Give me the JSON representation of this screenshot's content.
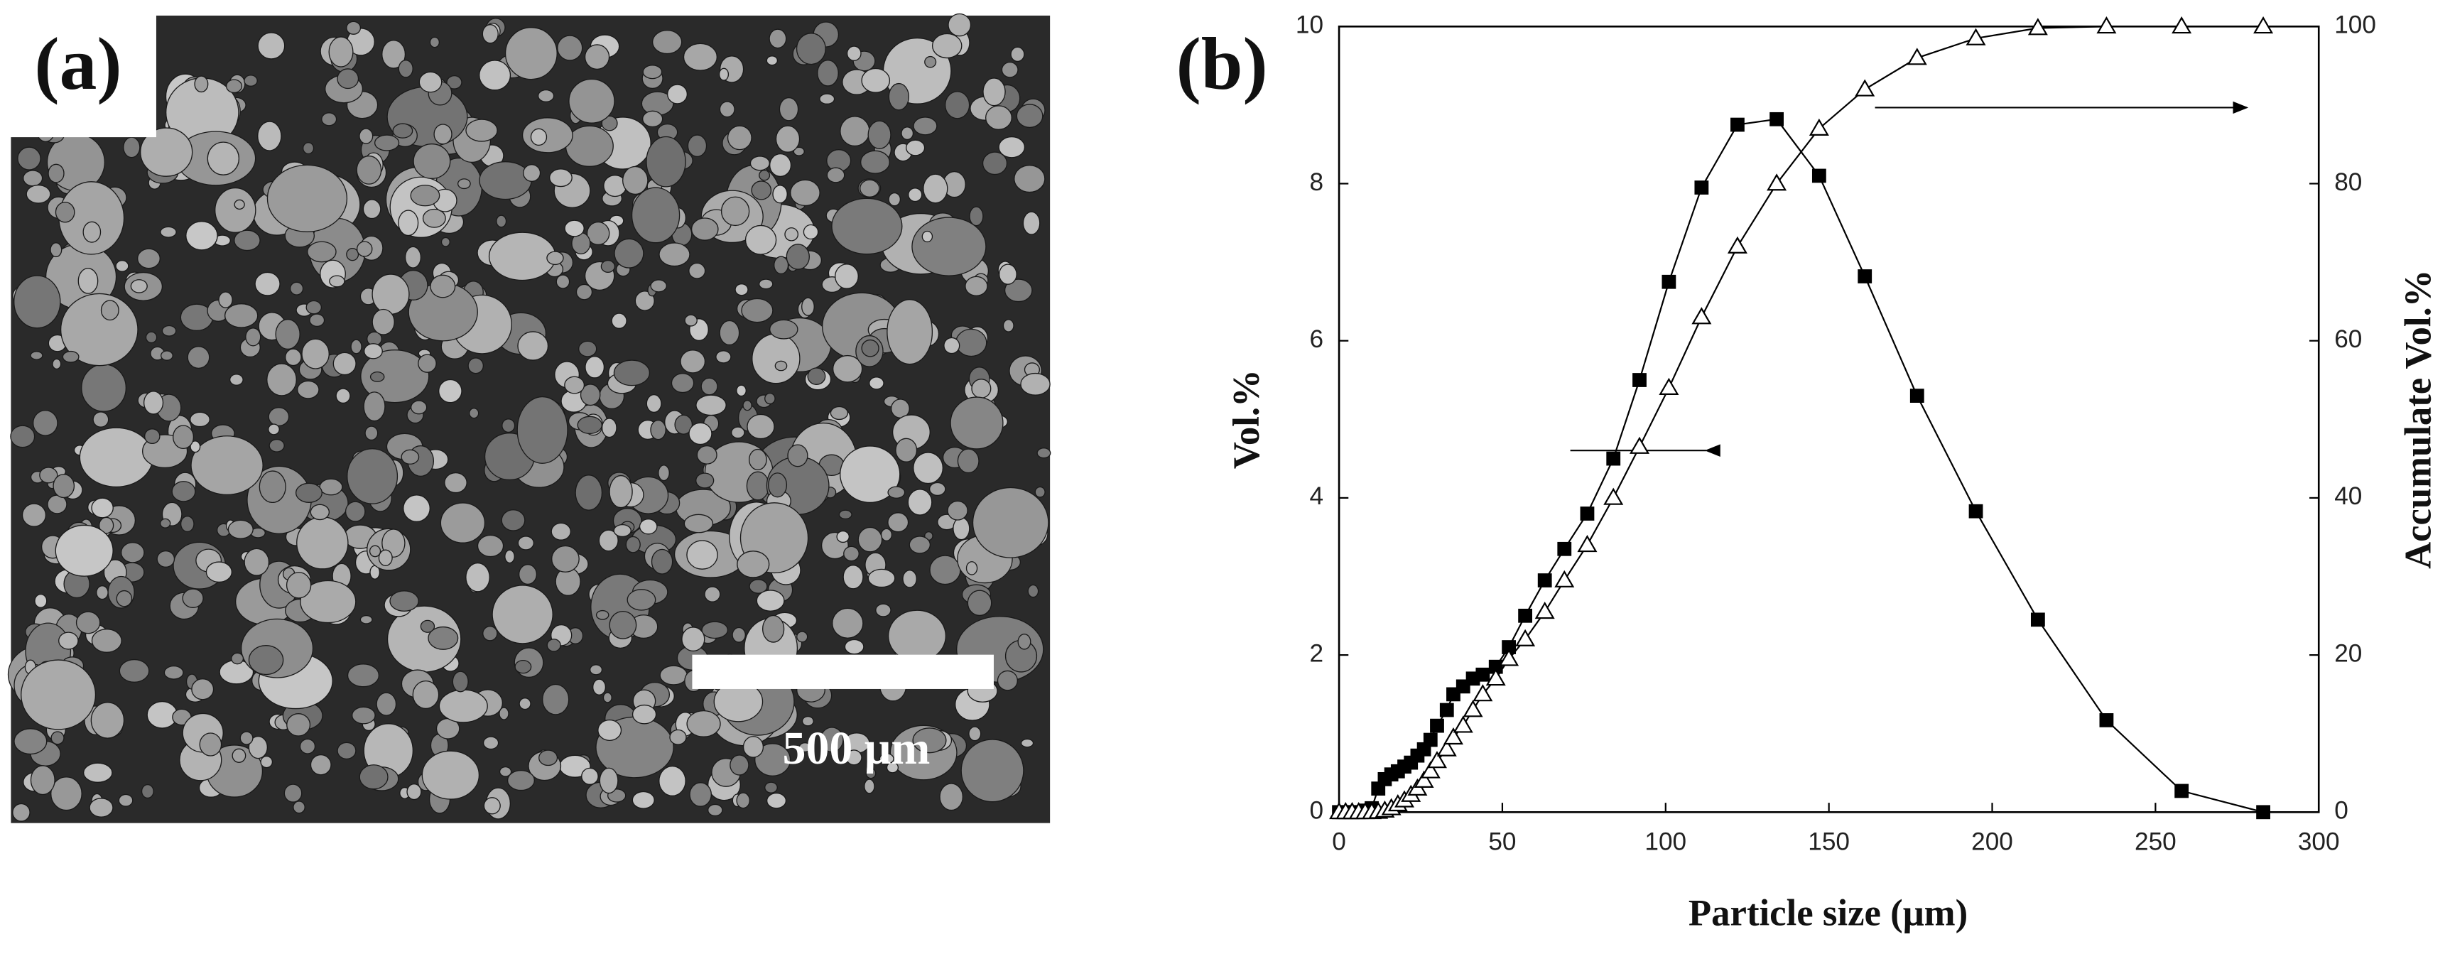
{
  "panel_a": {
    "label": "(a)",
    "scale_bar_text": "500 μm"
  },
  "chart_data": {
    "type": "line",
    "panel_label": "(b)",
    "x_label": "Particle size (μm)",
    "y_label": "Vol.%",
    "y2_label": "Accumulate Vol.%",
    "x": [
      0,
      2,
      4,
      6,
      8,
      10,
      12,
      14,
      16,
      18,
      20,
      22,
      24,
      26,
      28,
      30,
      33,
      35,
      38,
      41,
      44,
      48,
      52,
      57,
      63,
      69,
      76,
      84,
      92,
      101,
      111,
      122,
      134,
      147,
      161,
      177,
      195,
      214,
      235,
      258,
      283
    ],
    "series": [
      {
        "color": "#000000",
        "marker": "square",
        "axis": "y",
        "values": [
          0,
          0,
          0,
          0,
          0.02,
          0.05,
          0.3,
          0.42,
          0.48,
          0.52,
          0.58,
          0.63,
          0.72,
          0.8,
          0.92,
          1.1,
          1.3,
          1.5,
          1.6,
          1.7,
          1.75,
          1.85,
          2.1,
          2.5,
          2.95,
          3.35,
          3.8,
          4.5,
          5.5,
          6.75,
          7.95,
          8.75,
          8.82,
          8.1,
          6.82,
          5.3,
          3.83,
          2.45,
          1.17,
          0.27,
          0
        ]
      },
      {
        "color": "#000000",
        "marker": "triangle-open",
        "axis": "y2",
        "values": [
          0,
          0,
          0,
          0,
          0,
          0,
          0.05,
          0.2,
          0.5,
          1,
          1.5,
          2.2,
          3,
          4,
          5.2,
          6.5,
          8,
          9.5,
          11,
          13,
          15,
          17,
          19.5,
          22,
          25.5,
          29.5,
          34,
          40,
          46.5,
          54,
          63,
          72,
          80,
          87,
          92,
          96,
          98.5,
          99.8,
          100,
          100,
          100
        ]
      }
    ],
    "xlim": [
      0,
      300
    ],
    "xticks": [
      0,
      50,
      100,
      150,
      200,
      250,
      300
    ],
    "ylim": [
      0,
      10
    ],
    "yticks": [
      0,
      2,
      4,
      6,
      8,
      10
    ],
    "y2lim": [
      0,
      100
    ],
    "y2ticks": [
      0,
      20,
      40,
      60,
      80,
      100
    ]
  }
}
